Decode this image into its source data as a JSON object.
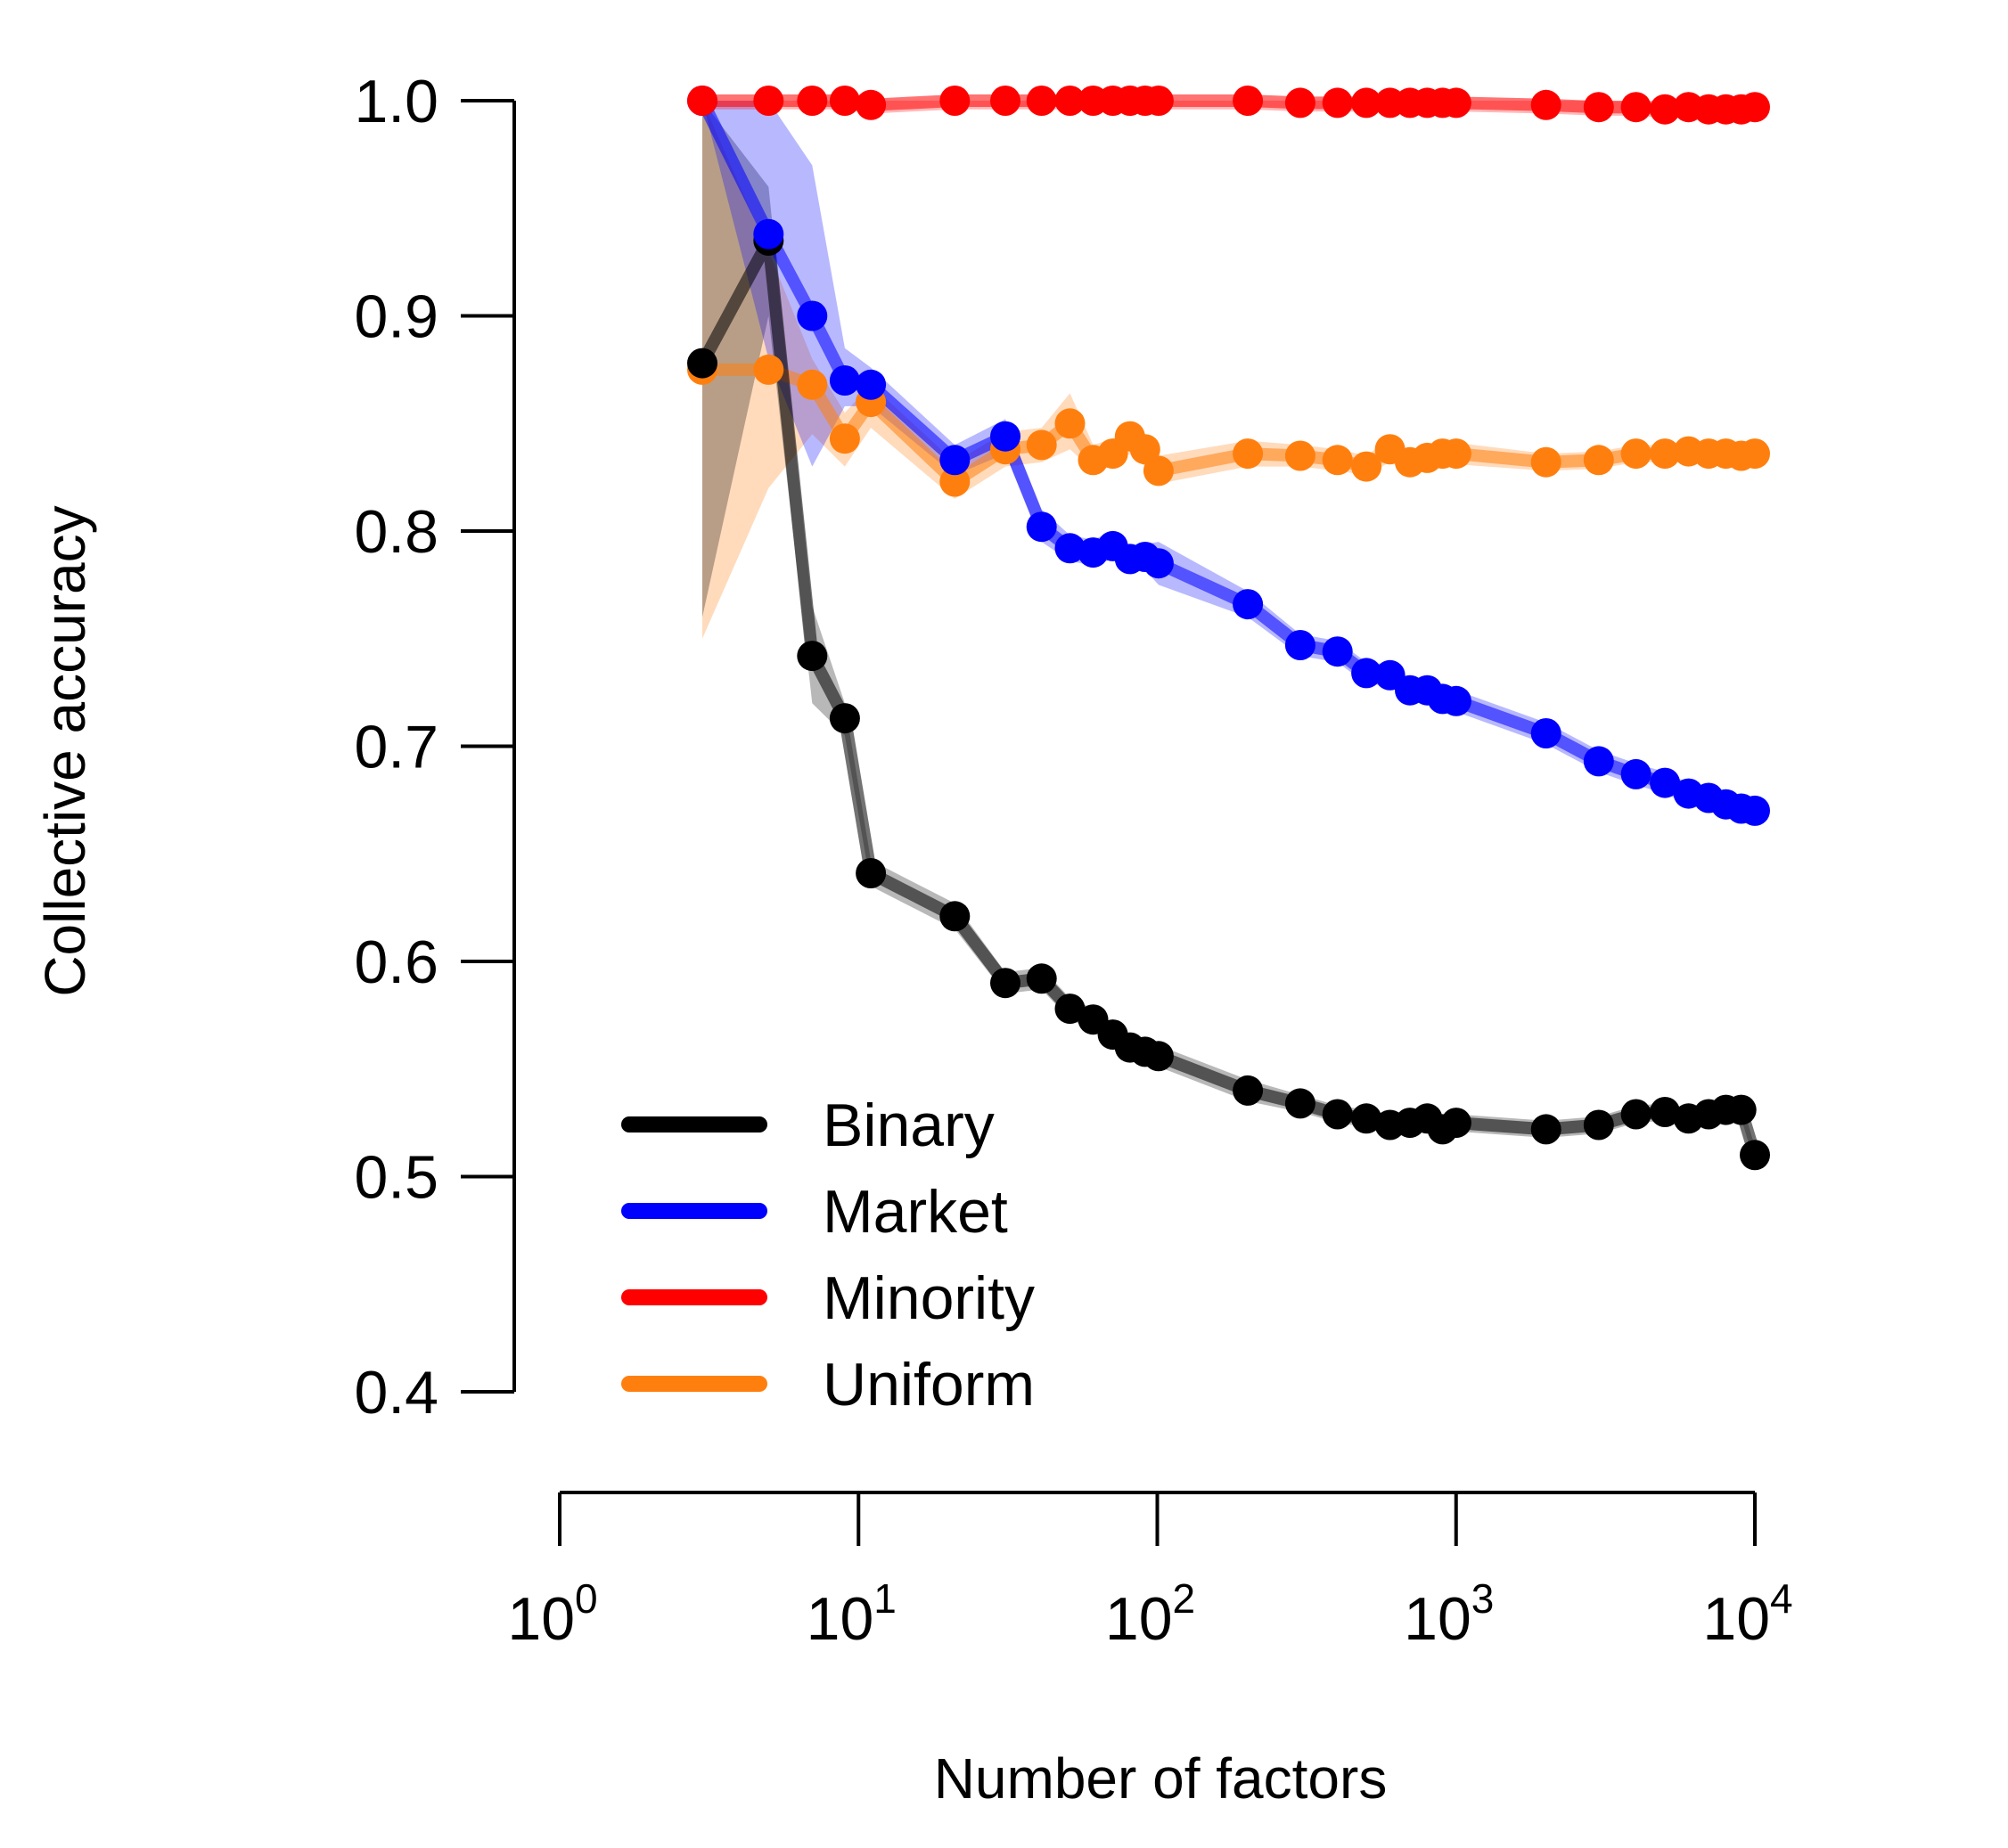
{
  "chart_data": {
    "type": "line",
    "xscale": "log10",
    "xlim": [
      1,
      10000
    ],
    "ylim": [
      0.4,
      1.0
    ],
    "xlabel": "Number of factors",
    "ylabel": "Collective accuracy",
    "grid": false,
    "legend_position": "bottom-left",
    "y_ticks": [
      {
        "value": 0.4,
        "label": "0.4"
      },
      {
        "value": 0.5,
        "label": "0.5"
      },
      {
        "value": 0.6,
        "label": "0.6"
      },
      {
        "value": 0.7,
        "label": "0.7"
      },
      {
        "value": 0.8,
        "label": "0.8"
      },
      {
        "value": 0.9,
        "label": "0.9"
      },
      {
        "value": 1.0,
        "label": "1.0"
      }
    ],
    "x_ticks": [
      {
        "value": 1,
        "base": "10",
        "exp": "0"
      },
      {
        "value": 10,
        "base": "10",
        "exp": "1"
      },
      {
        "value": 100,
        "base": "10",
        "exp": "2"
      },
      {
        "value": 1000,
        "base": "10",
        "exp": "3"
      },
      {
        "value": 10000,
        "base": "10",
        "exp": "4"
      }
    ],
    "series": [
      {
        "name": "Uniform",
        "color": "#ff7f0e",
        "x": [
          3,
          5,
          7,
          9,
          11,
          21,
          31,
          41,
          51,
          61,
          71,
          81,
          91,
          101,
          201,
          301,
          401,
          501,
          601,
          701,
          801,
          901,
          1001,
          2001,
          3001,
          4001,
          5001,
          6001,
          7001,
          8001,
          9001,
          10001
        ],
        "y": [
          0.875,
          0.875,
          0.868,
          0.843,
          0.86,
          0.823,
          0.838,
          0.84,
          0.85,
          0.833,
          0.836,
          0.844,
          0.838,
          0.828,
          0.836,
          0.835,
          0.833,
          0.83,
          0.838,
          0.832,
          0.834,
          0.836,
          0.836,
          0.832,
          0.833,
          0.836,
          0.836,
          0.837,
          0.836,
          0.836,
          0.835,
          0.836
        ],
        "band_lower": [
          0.75,
          0.82,
          0.845,
          0.83,
          0.848,
          0.815,
          0.83,
          0.832,
          0.838,
          0.828,
          0.83,
          0.836,
          0.83,
          0.822,
          0.83,
          0.83,
          0.828,
          0.826,
          0.832,
          0.828,
          0.83,
          0.831,
          0.831,
          0.828,
          0.829,
          0.832,
          0.832,
          0.833,
          0.832,
          0.832,
          0.831,
          0.832
        ],
        "band_upper": [
          1.0,
          0.93,
          0.88,
          0.855,
          0.868,
          0.832,
          0.846,
          0.848,
          0.864,
          0.84,
          0.843,
          0.85,
          0.845,
          0.835,
          0.842,
          0.84,
          0.838,
          0.835,
          0.843,
          0.837,
          0.838,
          0.84,
          0.841,
          0.836,
          0.837,
          0.84,
          0.84,
          0.841,
          0.84,
          0.84,
          0.839,
          0.84
        ]
      },
      {
        "name": "Binary",
        "color": "#000000",
        "x": [
          3,
          5,
          7,
          9,
          11,
          21,
          31,
          41,
          51,
          61,
          71,
          81,
          91,
          101,
          201,
          301,
          401,
          501,
          601,
          701,
          801,
          901,
          1001,
          2001,
          3001,
          4001,
          5001,
          6001,
          7001,
          8001,
          9001,
          10001
        ],
        "y": [
          0.878,
          0.935,
          0.742,
          0.713,
          0.641,
          0.621,
          0.59,
          0.592,
          0.578,
          0.573,
          0.566,
          0.56,
          0.558,
          0.556,
          0.54,
          0.534,
          0.529,
          0.527,
          0.524,
          0.525,
          0.527,
          0.522,
          0.525,
          0.522,
          0.524,
          0.529,
          0.53,
          0.527,
          0.529,
          0.531,
          0.531,
          0.51
        ],
        "band_lower": [
          0.76,
          0.9,
          0.72,
          0.705,
          0.635,
          0.615,
          0.585,
          0.587,
          0.573,
          0.568,
          0.561,
          0.555,
          0.553,
          0.551,
          0.535,
          0.53,
          0.525,
          0.523,
          0.52,
          0.521,
          0.523,
          0.518,
          0.521,
          0.518,
          0.52,
          0.525,
          0.526,
          0.523,
          0.525,
          0.527,
          0.527,
          0.506
        ],
        "band_upper": [
          1.0,
          0.96,
          0.765,
          0.72,
          0.647,
          0.627,
          0.595,
          0.597,
          0.583,
          0.578,
          0.571,
          0.565,
          0.563,
          0.561,
          0.545,
          0.538,
          0.533,
          0.531,
          0.528,
          0.529,
          0.531,
          0.526,
          0.529,
          0.526,
          0.528,
          0.533,
          0.534,
          0.531,
          0.533,
          0.535,
          0.535,
          0.514
        ]
      },
      {
        "name": "Market",
        "color": "#0000ff",
        "x": [
          3,
          5,
          7,
          9,
          11,
          21,
          31,
          41,
          51,
          61,
          71,
          81,
          91,
          101,
          201,
          301,
          401,
          501,
          601,
          701,
          801,
          901,
          1001,
          2001,
          3001,
          4001,
          5001,
          6001,
          7001,
          8001,
          9001,
          10001
        ],
        "y": [
          1.0,
          0.938,
          0.9,
          0.87,
          0.868,
          0.833,
          0.844,
          0.802,
          0.792,
          0.79,
          0.793,
          0.787,
          0.788,
          0.785,
          0.766,
          0.747,
          0.744,
          0.734,
          0.733,
          0.726,
          0.726,
          0.722,
          0.721,
          0.706,
          0.693,
          0.687,
          0.683,
          0.678,
          0.676,
          0.673,
          0.671,
          0.67
        ],
        "band_lower": [
          1.0,
          0.88,
          0.83,
          0.858,
          0.858,
          0.826,
          0.836,
          0.795,
          0.786,
          0.784,
          0.787,
          0.781,
          0.782,
          0.775,
          0.76,
          0.742,
          0.739,
          0.729,
          0.728,
          0.721,
          0.721,
          0.717,
          0.716,
          0.701,
          0.688,
          0.682,
          0.678,
          0.673,
          0.671,
          0.668,
          0.666,
          0.665
        ],
        "band_upper": [
          1.0,
          1.0,
          0.97,
          0.885,
          0.876,
          0.84,
          0.852,
          0.81,
          0.798,
          0.796,
          0.8,
          0.793,
          0.794,
          0.795,
          0.772,
          0.752,
          0.749,
          0.739,
          0.738,
          0.731,
          0.731,
          0.727,
          0.726,
          0.711,
          0.698,
          0.692,
          0.688,
          0.683,
          0.681,
          0.678,
          0.676,
          0.675
        ]
      },
      {
        "name": "Minority",
        "color": "#ff0000",
        "x": [
          3,
          5,
          7,
          9,
          11,
          21,
          31,
          41,
          51,
          61,
          71,
          81,
          91,
          101,
          201,
          301,
          401,
          501,
          601,
          701,
          801,
          901,
          1001,
          2001,
          3001,
          4001,
          5001,
          6001,
          7001,
          8001,
          9001,
          10001
        ],
        "y": [
          1.0,
          1.0,
          1.0,
          1.0,
          0.998,
          1.0,
          1.0,
          1.0,
          1.0,
          1.0,
          1.0,
          1.0,
          1.0,
          1.0,
          1.0,
          0.999,
          0.999,
          0.999,
          0.999,
          0.999,
          0.999,
          0.999,
          0.999,
          0.998,
          0.997,
          0.997,
          0.996,
          0.997,
          0.996,
          0.996,
          0.996,
          0.997
        ],
        "band_lower": [
          0.996,
          0.996,
          0.996,
          0.996,
          0.994,
          0.996,
          0.996,
          0.996,
          0.996,
          0.996,
          0.996,
          0.996,
          0.996,
          0.996,
          0.996,
          0.995,
          0.995,
          0.995,
          0.995,
          0.995,
          0.995,
          0.995,
          0.995,
          0.994,
          0.993,
          0.993,
          0.992,
          0.993,
          0.992,
          0.992,
          0.992,
          0.993
        ],
        "band_upper": [
          1.0,
          1.0,
          1.0,
          1.0,
          1.0,
          1.0,
          1.0,
          1.0,
          1.0,
          1.0,
          1.0,
          1.0,
          1.0,
          1.0,
          1.0,
          1.0,
          1.0,
          1.0,
          1.0,
          1.0,
          1.0,
          1.0,
          1.0,
          1.0,
          1.0,
          1.0,
          1.0,
          1.0,
          1.0,
          1.0,
          1.0,
          1.0
        ]
      }
    ],
    "legend": [
      {
        "name": "Binary",
        "color": "#000000"
      },
      {
        "name": "Market",
        "color": "#0000ff"
      },
      {
        "name": "Minority",
        "color": "#ff0000"
      },
      {
        "name": "Uniform",
        "color": "#ff7f0e"
      }
    ]
  }
}
